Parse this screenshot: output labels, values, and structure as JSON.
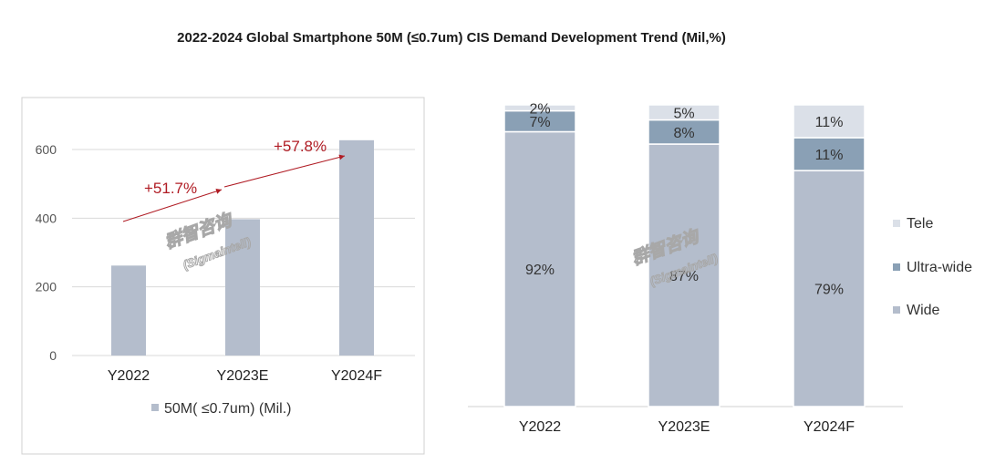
{
  "title": "2022-2024 Global Smartphone 50M (≤0.7um)  CIS Demand Development Trend (Mil,%)",
  "watermark": {
    "cn": "群智咨询",
    "en": "(Sigmaintell)"
  },
  "colors": {
    "bar": "#b4bdcc",
    "wide": "#b4bdcc",
    "ultra": "#8aa0b5",
    "tele": "#dbe0e8",
    "growth": "#b01c24",
    "grid": "#d9d9d9"
  },
  "chart_data": [
    {
      "type": "bar",
      "title": "",
      "categories": [
        "Y2022",
        "Y2023E",
        "Y2024F"
      ],
      "series": [
        {
          "name": "50M( ≤0.7um) (Mil.)",
          "values": [
            262,
            397,
            627
          ]
        }
      ],
      "ylim": [
        0,
        600
      ],
      "yticks": [
        0,
        200,
        400,
        600
      ],
      "legend_position": "bottom",
      "grid": true,
      "annotations": [
        {
          "text": "+51.7%",
          "from": "Y2022",
          "to": "Y2023E"
        },
        {
          "text": "+57.8%",
          "from": "Y2023E",
          "to": "Y2024F"
        }
      ]
    },
    {
      "type": "bar",
      "stacked": true,
      "title": "",
      "categories": [
        "Y2022",
        "Y2023E",
        "Y2024F"
      ],
      "series": [
        {
          "name": "Wide",
          "values": [
            92,
            87,
            79
          ],
          "labels": [
            "92%",
            "87%",
            "79%"
          ]
        },
        {
          "name": "Ultra-wide",
          "values": [
            7,
            8,
            11
          ],
          "labels": [
            "7%",
            "8%",
            "11%"
          ]
        },
        {
          "name": "Tele",
          "values": [
            2,
            5,
            11
          ],
          "labels": [
            "2%",
            "5%",
            "11%"
          ]
        }
      ],
      "legend_order": [
        "Tele",
        "Ultra-wide",
        "Wide"
      ],
      "legend_position": "right",
      "grid": false
    }
  ]
}
